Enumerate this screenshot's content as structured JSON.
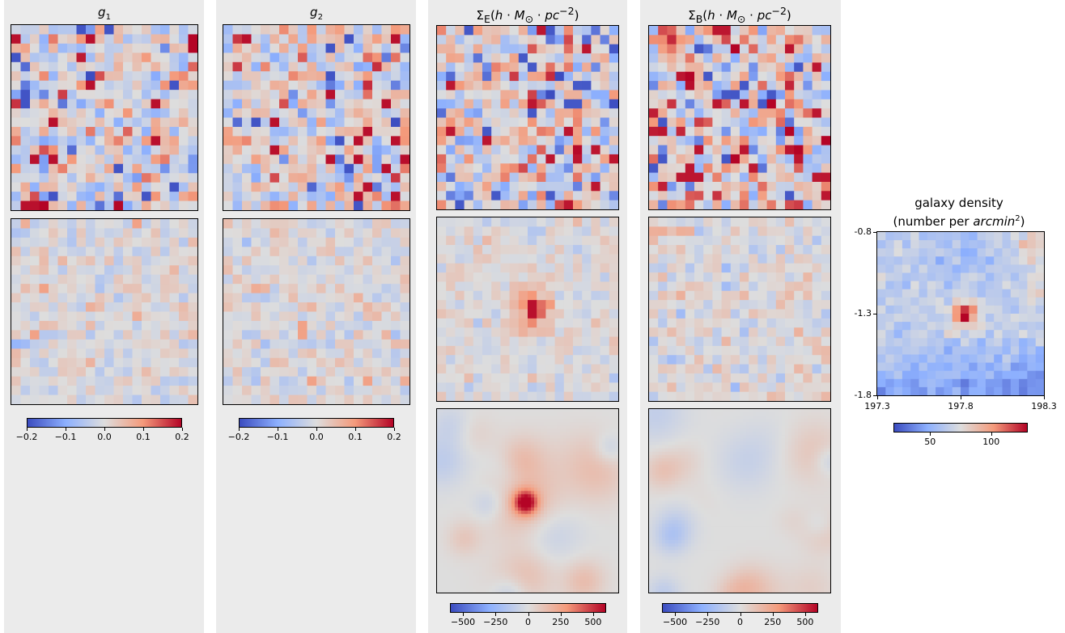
{
  "columns": [
    {
      "title": "g1",
      "title_main": "g",
      "title_sub": "1"
    },
    {
      "title": "g2",
      "title_main": "g",
      "title_sub": "2"
    },
    {
      "title": "ΣE(h·M☉·pc−2)",
      "title_html": "Σ<sub>E</sub>(<i>h</i> · <i>M</i><sub>⊙</sub> · <i>pc</i><sup>−2</sup>)"
    },
    {
      "title": "ΣB(h·M☉·pc−2)",
      "title_html": "Σ<sub>B</sub>(<i>h</i> · <i>M</i><sub>⊙</sub> · <i>pc</i><sup>−2</sup>)"
    }
  ],
  "colorbars": {
    "shear": {
      "ticks": [
        "−0.2",
        "−0.1",
        "0.0",
        "0.1",
        "0.2"
      ],
      "range": [
        -0.2,
        0.2
      ]
    },
    "sigma": {
      "ticks": [
        "−500",
        "−250",
        "0",
        "250",
        "500"
      ],
      "range": [
        -600,
        600
      ]
    },
    "density": {
      "ticks": [
        "50",
        "100"
      ],
      "range": [
        20,
        130
      ]
    }
  },
  "density_panel": {
    "title_line1": "galaxy density",
    "title_line2_prefix": "(number per ",
    "title_line2_italic": "arcmin",
    "title_line2_sup": "2",
    "title_line2_suffix": ")",
    "x_ticks": [
      "197.3",
      "197.8",
      "198.3"
    ],
    "y_ticks": [
      "-0.8",
      "-1.3",
      "-1.8"
    ]
  },
  "colors": {
    "cold": "#3b4cc0",
    "neutral": "#dddddd",
    "hot": "#b40426",
    "panel_bg": "#ebebeb"
  },
  "chart_data": [
    {
      "type": "heatmap",
      "name": "g1 noisy",
      "grid": [
        20,
        20
      ],
      "vmin": -0.2,
      "vmax": 0.2
    },
    {
      "type": "heatmap",
      "name": "g1 smoothed",
      "grid": [
        20,
        20
      ],
      "vmin": -0.2,
      "vmax": 0.2
    },
    {
      "type": "heatmap",
      "name": "g2 noisy",
      "grid": [
        20,
        20
      ],
      "vmin": -0.2,
      "vmax": 0.2
    },
    {
      "type": "heatmap",
      "name": "g2 smoothed",
      "grid": [
        20,
        20
      ],
      "vmin": -0.2,
      "vmax": 0.2
    },
    {
      "type": "heatmap",
      "name": "SigmaE noisy",
      "grid": [
        20,
        20
      ],
      "vmin": -600,
      "vmax": 600
    },
    {
      "type": "heatmap",
      "name": "SigmaE binned",
      "grid": [
        20,
        20
      ],
      "vmin": -600,
      "vmax": 600,
      "peak": [
        10,
        9
      ]
    },
    {
      "type": "heatmap",
      "name": "SigmaE smooth",
      "vmin": -600,
      "vmax": 600,
      "peak_value": 600
    },
    {
      "type": "heatmap",
      "name": "SigmaB noisy",
      "grid": [
        20,
        20
      ],
      "vmin": -600,
      "vmax": 600
    },
    {
      "type": "heatmap",
      "name": "SigmaB binned",
      "grid": [
        20,
        20
      ],
      "vmin": -600,
      "vmax": 600
    },
    {
      "type": "heatmap",
      "name": "SigmaB smooth",
      "vmin": -600,
      "vmax": 600
    },
    {
      "type": "heatmap",
      "name": "galaxy density",
      "grid": [
        20,
        20
      ],
      "xlim": [
        197.3,
        198.3
      ],
      "ylim": [
        -1.8,
        -0.8
      ],
      "vmin": 20,
      "vmax": 130,
      "peak_value": 130
    }
  ]
}
